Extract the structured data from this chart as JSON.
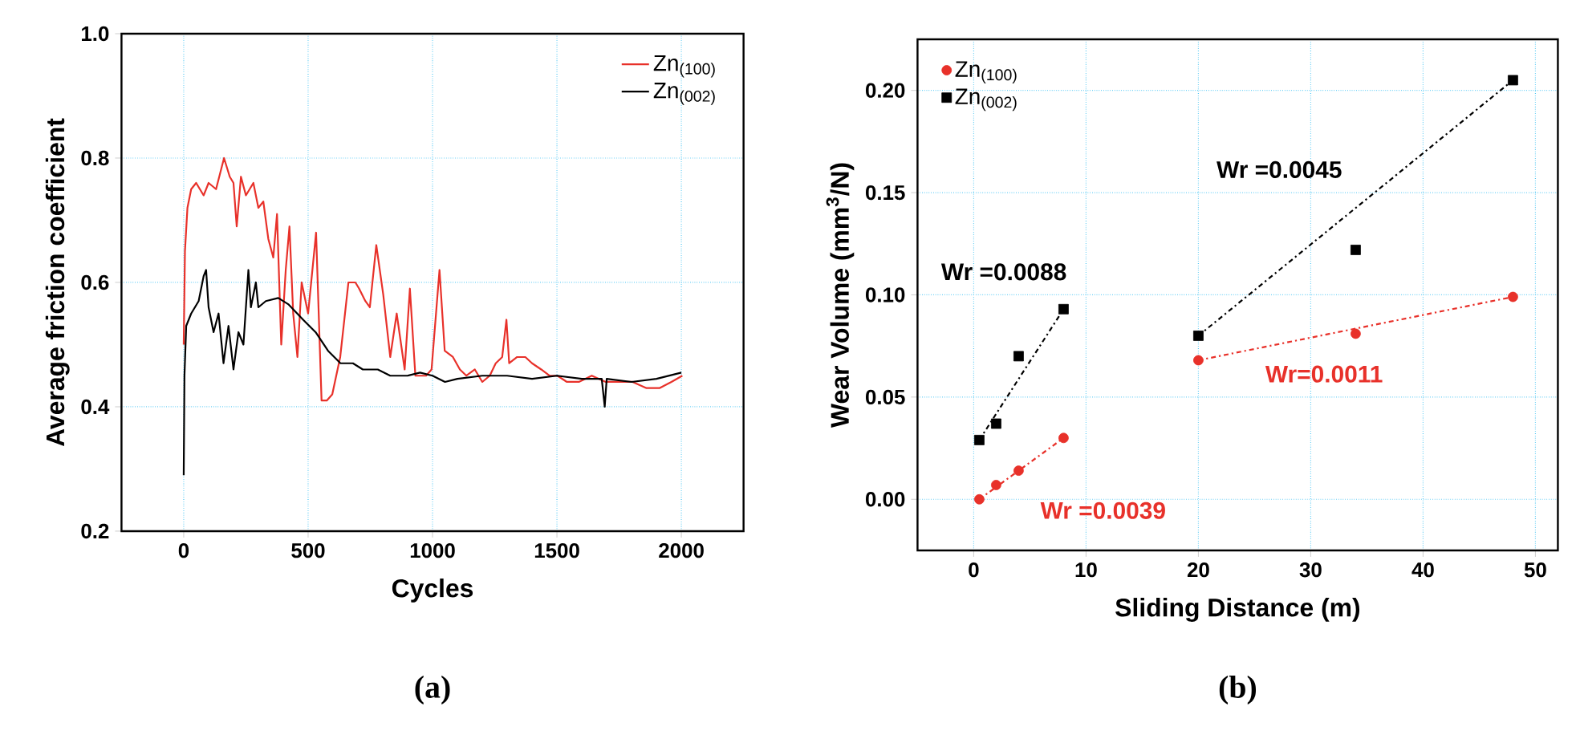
{
  "chart_data": [
    {
      "type": "line",
      "xlabel": "Cycles",
      "ylabel": "Average friction coefficient",
      "xlim": [
        -250,
        2250
      ],
      "xticks": [
        0,
        500,
        1000,
        1500,
        2000
      ],
      "ylim": [
        0.2,
        1.0
      ],
      "yticks": [
        {
          "value": 0.2,
          "label": "0.2"
        },
        {
          "value": 0.4,
          "label": "0.4"
        },
        {
          "value": 0.6,
          "label": "0.6"
        },
        {
          "value": 0.8,
          "label": "0.8"
        },
        {
          "value": 1.0,
          "label": "1.0"
        }
      ],
      "grid": true,
      "legend": "top right",
      "marker": "none",
      "line_style": "solid",
      "annotations": [
        "(a)"
      ],
      "series": [
        {
          "name": "Zn$_{(100)}$",
          "color": "#e8312a",
          "x": [
            0,
            5,
            15,
            30,
            50,
            80,
            100,
            130,
            162,
            185,
            200,
            213,
            230,
            250,
            280,
            300,
            320,
            340,
            360,
            375,
            392,
            410,
            425,
            440,
            457,
            474,
            500,
            532,
            545,
            554,
            575,
            597,
            629,
            662,
            690,
            705,
            730,
            748,
            774,
            802,
            830,
            856,
            888,
            909,
            931,
            974,
            996,
            1028,
            1049,
            1082,
            1110,
            1136,
            1170,
            1200,
            1230,
            1254,
            1280,
            1297,
            1308,
            1340,
            1373,
            1400,
            1437,
            1470,
            1502,
            1540,
            1588,
            1640,
            1696,
            1750,
            1804,
            1860,
            1912,
            1960,
            2004
          ],
          "values": [
            0.5,
            0.65,
            0.72,
            0.75,
            0.76,
            0.74,
            0.76,
            0.75,
            0.8,
            0.77,
            0.76,
            0.69,
            0.77,
            0.74,
            0.76,
            0.72,
            0.73,
            0.67,
            0.64,
            0.71,
            0.5,
            0.62,
            0.69,
            0.55,
            0.48,
            0.6,
            0.55,
            0.68,
            0.52,
            0.41,
            0.41,
            0.42,
            0.48,
            0.6,
            0.6,
            0.59,
            0.57,
            0.56,
            0.66,
            0.58,
            0.48,
            0.55,
            0.46,
            0.59,
            0.45,
            0.45,
            0.46,
            0.62,
            0.49,
            0.48,
            0.46,
            0.45,
            0.46,
            0.44,
            0.45,
            0.47,
            0.48,
            0.54,
            0.47,
            0.48,
            0.48,
            0.47,
            0.46,
            0.45,
            0.45,
            0.44,
            0.44,
            0.45,
            0.44,
            0.44,
            0.44,
            0.43,
            0.43,
            0.44,
            0.45
          ]
        },
        {
          "name": "Zn$_{(002)}$",
          "color": "#000000",
          "x": [
            0,
            3,
            10,
            30,
            60,
            80,
            90,
            100,
            120,
            140,
            160,
            180,
            200,
            220,
            240,
            260,
            270,
            290,
            300,
            330,
            380,
            420,
            480,
            530,
            580,
            630,
            680,
            720,
            780,
            830,
            900,
            950,
            1000,
            1050,
            1100,
            1200,
            1300,
            1400,
            1500,
            1600,
            1680,
            1692,
            1700,
            1800,
            1900,
            2000
          ],
          "values": [
            0.29,
            0.45,
            0.53,
            0.55,
            0.57,
            0.61,
            0.62,
            0.56,
            0.52,
            0.55,
            0.47,
            0.53,
            0.46,
            0.52,
            0.5,
            0.62,
            0.56,
            0.6,
            0.56,
            0.57,
            0.575,
            0.565,
            0.54,
            0.52,
            0.49,
            0.47,
            0.47,
            0.46,
            0.46,
            0.45,
            0.45,
            0.455,
            0.45,
            0.44,
            0.445,
            0.45,
            0.45,
            0.445,
            0.45,
            0.445,
            0.445,
            0.4,
            0.445,
            0.44,
            0.445,
            0.455
          ]
        }
      ]
    },
    {
      "type": "scatter",
      "xlabel": "Sliding Distance (m)",
      "ylabel": "Wear Volume (mm$^{3}$/N)",
      "xlim": [
        -5,
        52
      ],
      "xticks": [
        0,
        10,
        20,
        30,
        40,
        50
      ],
      "ylim": [
        -0.025,
        0.225
      ],
      "yticks": [
        {
          "value": 0,
          "label": "0.00"
        },
        {
          "value": 0.05,
          "label": "0.05"
        },
        {
          "value": 0.1,
          "label": "0.10"
        },
        {
          "value": 0.15,
          "label": "0.15"
        },
        {
          "value": 0.2,
          "label": "0.20"
        }
      ],
      "grid": true,
      "legend": "top left",
      "annotations": [
        "(b)",
        "Wr =0.0088",
        "Wr =0.0045",
        "Wr=0.0011",
        "Wr =0.0039"
      ],
      "series": [
        {
          "name": "Zn$_{(100)}$",
          "color": "#e8312a",
          "marker": "circle",
          "x": [
            0.5,
            2,
            4,
            8,
            20,
            34,
            48
          ],
          "values": [
            0,
            0.007,
            0.014,
            0.03,
            0.068,
            0.081,
            0.099
          ]
        },
        {
          "name": "Zn$_{(002)}$",
          "color": "#000000",
          "marker": "square",
          "x": [
            0.5,
            2,
            4,
            8,
            20,
            34,
            48
          ],
          "values": [
            0.029,
            0.037,
            0.07,
            0.093,
            0.08,
            0.122,
            0.205
          ]
        },
        {
          "type": "line",
          "line_style": "dashdot",
          "color": "#e8312a",
          "x": [
            0.5,
            8
          ],
          "values": [
            0,
            0.03
          ]
        },
        {
          "type": "line",
          "line_style": "dashdot",
          "color": "#e8312a",
          "x": [
            20,
            48
          ],
          "values": [
            0.068,
            0.099
          ]
        },
        {
          "type": "line",
          "line_style": "dashdot",
          "color": "#000000",
          "x": [
            0.5,
            8
          ],
          "values": [
            0.029,
            0.093
          ]
        },
        {
          "type": "line",
          "line_style": "dashdot",
          "color": "#000000",
          "x": [
            20,
            48
          ],
          "values": [
            0.08,
            0.205
          ]
        }
      ]
    }
  ]
}
